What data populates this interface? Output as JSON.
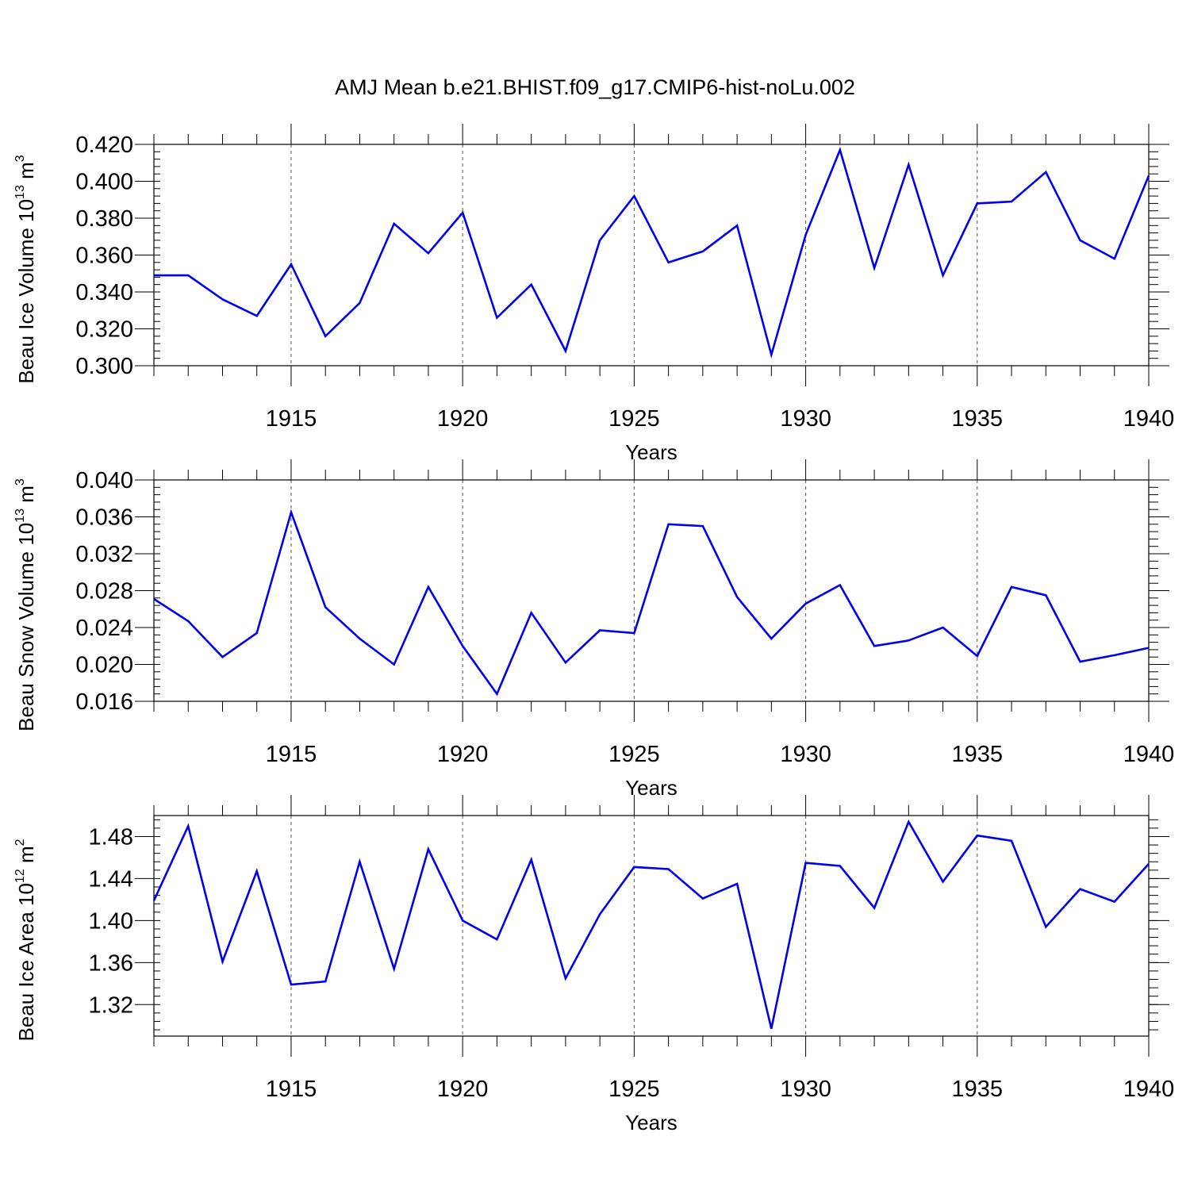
{
  "title": "AMJ Mean b.e21.BHIST.f09_g17.CMIP6-hist-noLu.002",
  "chart_data": [
    {
      "type": "line",
      "ylabel": {
        "main": "Beau Ice Volume 10",
        "exp": "13",
        "unit": " m",
        "unit_exp": "3"
      },
      "xlabel": "Years",
      "xlim": [
        1911,
        1940
      ],
      "ylim": [
        0.3,
        0.42
      ],
      "yticks": [
        0.3,
        0.32,
        0.34,
        0.36,
        0.38,
        0.4,
        0.42
      ],
      "ytick_labels": [
        "0.300",
        "0.320",
        "0.340",
        "0.360",
        "0.380",
        "0.400",
        "0.420"
      ],
      "xticks": [
        1915,
        1920,
        1925,
        1930,
        1935,
        1940
      ],
      "xtick_labels": [
        "1915",
        "1920",
        "1925",
        "1930",
        "1935",
        "1940"
      ],
      "color": "#0000ee",
      "x": [
        1911,
        1912,
        1913,
        1914,
        1915,
        1916,
        1917,
        1918,
        1919,
        1920,
        1921,
        1922,
        1923,
        1924,
        1925,
        1926,
        1927,
        1928,
        1929,
        1930,
        1931,
        1932,
        1933,
        1934,
        1935,
        1936,
        1937,
        1938,
        1939,
        1940
      ],
      "y": [
        0.349,
        0.349,
        0.336,
        0.327,
        0.355,
        0.316,
        0.334,
        0.377,
        0.361,
        0.383,
        0.326,
        0.344,
        0.308,
        0.368,
        0.392,
        0.356,
        0.362,
        0.376,
        0.306,
        0.371,
        0.417,
        0.353,
        0.409,
        0.349,
        0.388,
        0.389,
        0.405,
        0.368,
        0.358,
        0.403
      ]
    },
    {
      "type": "line",
      "ylabel": {
        "main": "Beau Snow Volume 10",
        "exp": "13",
        "unit": " m",
        "unit_exp": "3"
      },
      "xlabel": "Years",
      "xlim": [
        1911,
        1940
      ],
      "ylim": [
        0.016,
        0.04
      ],
      "yticks": [
        0.016,
        0.02,
        0.024,
        0.028,
        0.032,
        0.036,
        0.04
      ],
      "ytick_labels": [
        "0.016",
        "0.020",
        "0.024",
        "0.028",
        "0.032",
        "0.036",
        "0.040"
      ],
      "xticks": [
        1915,
        1920,
        1925,
        1930,
        1935,
        1940
      ],
      "xtick_labels": [
        "1915",
        "1920",
        "1925",
        "1930",
        "1935",
        "1940"
      ],
      "color": "#0000ee",
      "x": [
        1911,
        1912,
        1913,
        1914,
        1915,
        1916,
        1917,
        1918,
        1919,
        1920,
        1921,
        1922,
        1923,
        1924,
        1925,
        1926,
        1927,
        1928,
        1929,
        1930,
        1931,
        1932,
        1933,
        1934,
        1935,
        1936,
        1937,
        1938,
        1939,
        1940
      ],
      "y": [
        0.0271,
        0.0247,
        0.0208,
        0.0234,
        0.0365,
        0.0262,
        0.0228,
        0.02,
        0.0284,
        0.022,
        0.0168,
        0.0256,
        0.0202,
        0.0237,
        0.0234,
        0.0352,
        0.035,
        0.0273,
        0.0228,
        0.0266,
        0.0286,
        0.022,
        0.0226,
        0.024,
        0.0209,
        0.0284,
        0.0275,
        0.0203,
        0.021,
        0.0218
      ]
    },
    {
      "type": "line",
      "ylabel": {
        "main": "Beau Ice Area 10",
        "exp": "12",
        "unit": " m",
        "unit_exp": "2"
      },
      "xlabel": "Years",
      "xlim": [
        1911,
        1940
      ],
      "ylim": [
        1.29,
        1.5
      ],
      "yticks": [
        1.32,
        1.36,
        1.4,
        1.44,
        1.48
      ],
      "ytick_labels": [
        "1.32",
        "1.36",
        "1.40",
        "1.44",
        "1.48"
      ],
      "xticks": [
        1915,
        1920,
        1925,
        1930,
        1935,
        1940
      ],
      "xtick_labels": [
        "1915",
        "1920",
        "1925",
        "1930",
        "1935",
        "1940"
      ],
      "color": "#0000ee",
      "x": [
        1911,
        1912,
        1913,
        1914,
        1915,
        1916,
        1917,
        1918,
        1919,
        1920,
        1921,
        1922,
        1923,
        1924,
        1925,
        1926,
        1927,
        1928,
        1929,
        1930,
        1931,
        1932,
        1933,
        1934,
        1935,
        1936,
        1937,
        1938,
        1939,
        1940
      ],
      "y": [
        1.419,
        1.49,
        1.361,
        1.447,
        1.339,
        1.342,
        1.456,
        1.354,
        1.468,
        1.4,
        1.382,
        1.458,
        1.345,
        1.406,
        1.451,
        1.449,
        1.421,
        1.435,
        1.297,
        1.455,
        1.452,
        1.412,
        1.494,
        1.437,
        1.481,
        1.476,
        1.394,
        1.43,
        1.418,
        1.454
      ]
    }
  ]
}
